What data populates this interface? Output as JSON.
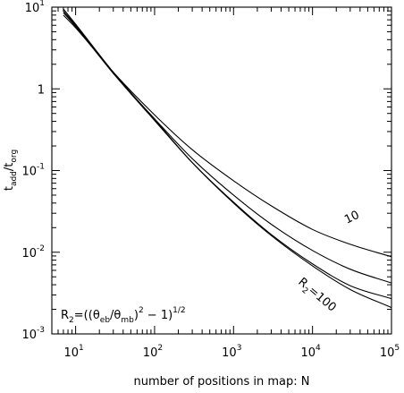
{
  "chart_data": {
    "type": "line",
    "x_scale": "log",
    "y_scale": "log",
    "xlabel": "number of positions in map: N",
    "ylabel": {
      "base": "t",
      "sub1": "add",
      "mid": "/t",
      "sub2": "org"
    },
    "xlim": [
      5,
      100000
    ],
    "ylim": [
      0.001,
      10
    ],
    "x_ticks": [
      {
        "base": "10",
        "exp": "1",
        "value": 10
      },
      {
        "base": "10",
        "exp": "2",
        "value": 100
      },
      {
        "base": "10",
        "exp": "3",
        "value": 1000
      },
      {
        "base": "10",
        "exp": "4",
        "value": 10000
      },
      {
        "base": "10",
        "exp": "5",
        "value": 100000
      }
    ],
    "y_ticks": [
      {
        "base": "10",
        "exp": "-3",
        "value": 0.001
      },
      {
        "base": "10",
        "exp": "-2",
        "value": 0.01
      },
      {
        "base": "10",
        "exp": "-1",
        "value": 0.1
      },
      {
        "base": "1",
        "exp": "",
        "value": 1
      },
      {
        "base": "10",
        "exp": "1",
        "value": 10
      }
    ],
    "grid": false,
    "series": [
      {
        "x": [
          7,
          10,
          30,
          100,
          300,
          1000,
          3000,
          10000,
          30000,
          100000
        ],
        "y": [
          9.5,
          6.2,
          1.6,
          0.42,
          0.125,
          0.04,
          0.016,
          0.0068,
          0.0035,
          0.0021
        ]
      },
      {
        "x": [
          7,
          10,
          30,
          100,
          300,
          1000,
          3000,
          10000,
          30000,
          100000
        ],
        "y": [
          9.0,
          6.0,
          1.55,
          0.41,
          0.125,
          0.041,
          0.0165,
          0.0072,
          0.0039,
          0.0027
        ]
      },
      {
        "x": [
          7,
          10,
          30,
          100,
          300,
          1000,
          3000,
          10000,
          30000,
          100000
        ],
        "y": [
          8.6,
          5.8,
          1.55,
          0.43,
          0.14,
          0.05,
          0.022,
          0.0105,
          0.0062,
          0.0042
        ]
      },
      {
        "x": [
          7,
          10,
          30,
          100,
          300,
          1000,
          3000,
          10000,
          30000,
          100000
        ],
        "y": [
          8.0,
          5.6,
          1.6,
          0.48,
          0.18,
          0.075,
          0.037,
          0.019,
          0.0125,
          0.0088
        ]
      }
    ],
    "annotations": {
      "label_10": "10",
      "label_r2_100": {
        "base": "R",
        "sub": "2",
        "rest": "=100"
      },
      "formula": {
        "p1": "R",
        "s1": "2",
        "p2": "=((θ",
        "s2": "eb",
        "p3": "/θ",
        "s3": "mb",
        "p4": ")",
        "sup1": "2",
        "p5": " − 1)",
        "sup2": "1/2"
      }
    }
  }
}
